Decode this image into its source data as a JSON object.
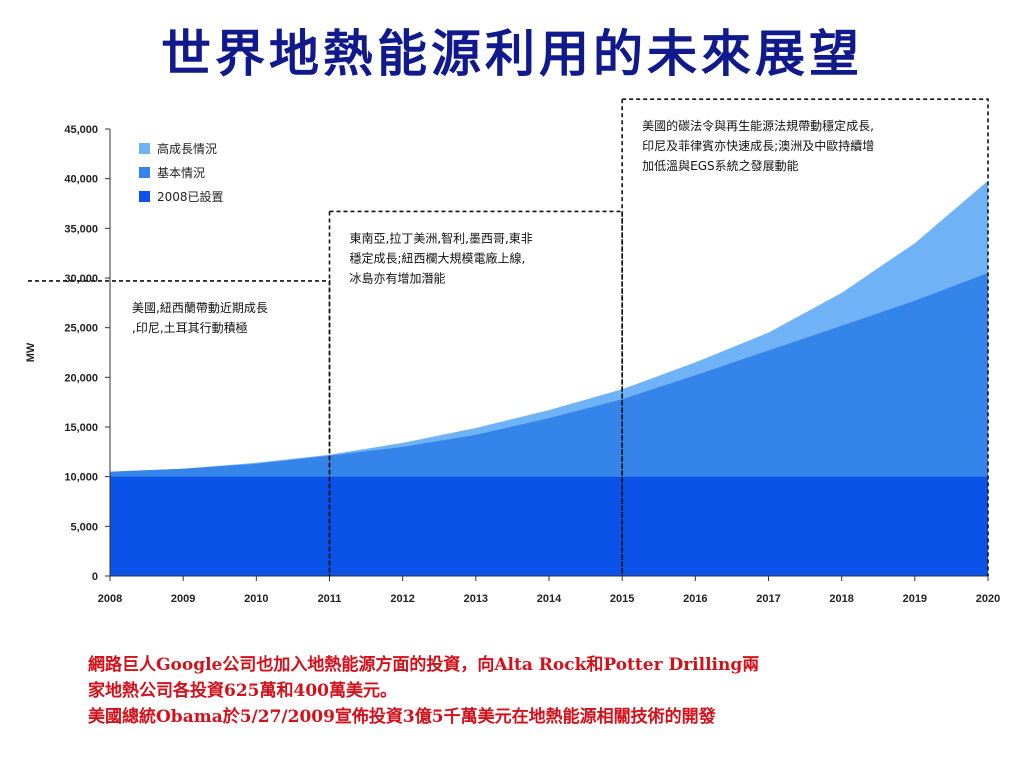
{
  "title": "世界地熱能源利用的未來展望",
  "chart_data": {
    "type": "area",
    "ylabel": "MW",
    "x": [
      2008,
      2009,
      2010,
      2011,
      2012,
      2013,
      2014,
      2015,
      2016,
      2017,
      2018,
      2019,
      2020
    ],
    "ylim": [
      0,
      45000
    ],
    "yticks": [
      0,
      5000,
      10000,
      15000,
      20000,
      25000,
      30000,
      35000,
      40000,
      45000
    ],
    "ytick_labels": [
      "0",
      "5,000",
      "10,000",
      "15,000",
      "20,000",
      "25,000",
      "30,000",
      "35,000",
      "40,000",
      "45,000"
    ],
    "grid": false,
    "legend_position": "top-left",
    "stacked": false,
    "series": [
      {
        "name": "高成長情況",
        "color": "#6fb2f5",
        "values": [
          10500,
          10800,
          11400,
          12200,
          13400,
          14900,
          16700,
          18800,
          21500,
          24500,
          28500,
          33500,
          39800
        ]
      },
      {
        "name": "基本情況",
        "color": "#3584ea",
        "values": [
          10500,
          10800,
          11300,
          12100,
          13000,
          14200,
          15900,
          17800,
          20200,
          22700,
          25200,
          27700,
          30500
        ]
      },
      {
        "name": "2008已設置",
        "color": "#0b52e8",
        "values": [
          10000,
          10000,
          10000,
          10000,
          10000,
          10000,
          10000,
          10000,
          10000,
          10000,
          10000,
          10000,
          10000
        ]
      }
    ],
    "annotations": [
      {
        "from": 2008,
        "to": 2011,
        "top_value": 29700,
        "lines": [
          "美國,紐西蘭帶動近期成長",
          ",印尼,土耳其行動積極"
        ]
      },
      {
        "from": 2011,
        "to": 2015,
        "top_value": 36700,
        "lines": [
          "東南亞,拉丁美洲,智利,墨西哥,東非",
          "穩定成長;紐西欄大規模電廠上線,",
          "冰島亦有增加潛能"
        ]
      },
      {
        "from": 2015,
        "to": 2020,
        "top_value": 48000,
        "lines": [
          "美國的碳法令與再生能源法規帶動穩定成長,",
          "印尼及菲律賓亦快速成長;澳洲及中歐持續增",
          "加低溫與EGS系統之發展動能"
        ]
      }
    ]
  },
  "caption": {
    "line1": "網路巨人Google公司也加入地熱能源方面的投資，向Alta Rock和Potter Drilling兩",
    "line2": "家地熱公司各投資625萬和400萬美元。",
    "line3": "美國總統Obama於5/27/2009宣佈投資3億5千萬美元在地熱能源相關技術的開發"
  }
}
